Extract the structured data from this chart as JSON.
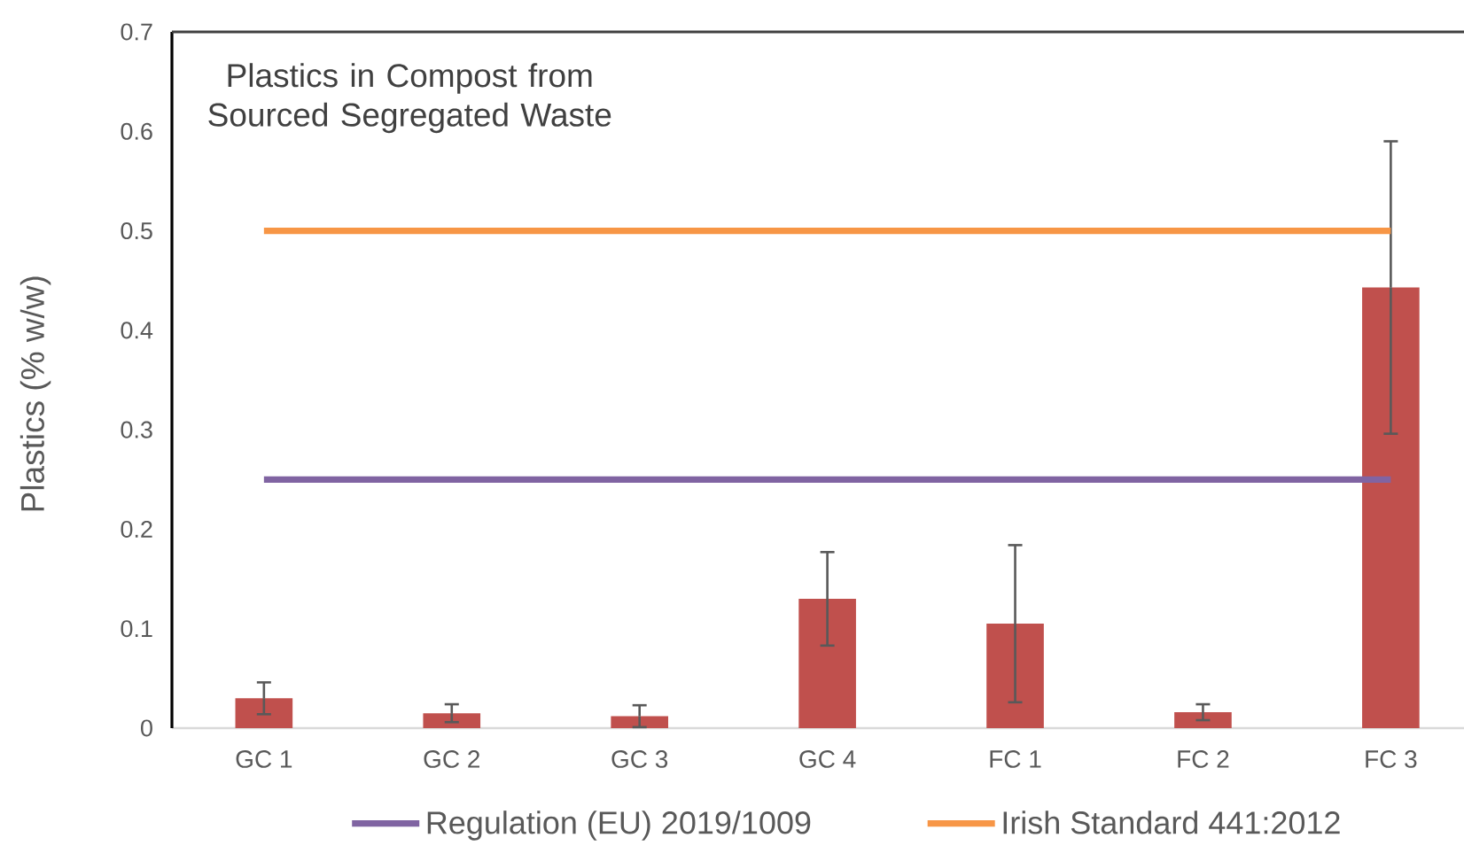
{
  "chart_data": {
    "type": "bar",
    "title": "Plastics in Compost from Sourced Segregated Waste",
    "ylabel": "Plastics (% w/w)",
    "categories": [
      "GC 1",
      "GC 2",
      "GC 3",
      "GC 4",
      "FC 1",
      "FC 2",
      "FC 3"
    ],
    "series": [
      {
        "color": "#c0504d",
        "values": [
          0.03,
          0.015,
          0.012,
          0.13,
          0.105,
          0.016,
          0.443
        ],
        "errors": [
          0.016,
          0.009,
          0.011,
          0.047,
          0.079,
          0.008,
          0.147
        ]
      },
      {
        "type": "line",
        "name": "Regulation (EU) 2019/1009",
        "color": "#8064a2",
        "values": [
          0.25,
          0.25,
          0.25,
          0.25,
          0.25,
          0.25,
          0.25
        ]
      },
      {
        "type": "line",
        "name": "Irish Standard 441:2012",
        "color": "#f79646",
        "values": [
          0.5,
          0.5,
          0.5,
          0.5,
          0.5,
          0.5,
          0.5
        ]
      }
    ],
    "ylim": [
      0,
      0.7
    ],
    "yticks": [
      0,
      0.1,
      0.2,
      0.3,
      0.4,
      0.5,
      0.6,
      0.7
    ],
    "legend": "bottom",
    "marker": "none",
    "line_style": "solid"
  }
}
